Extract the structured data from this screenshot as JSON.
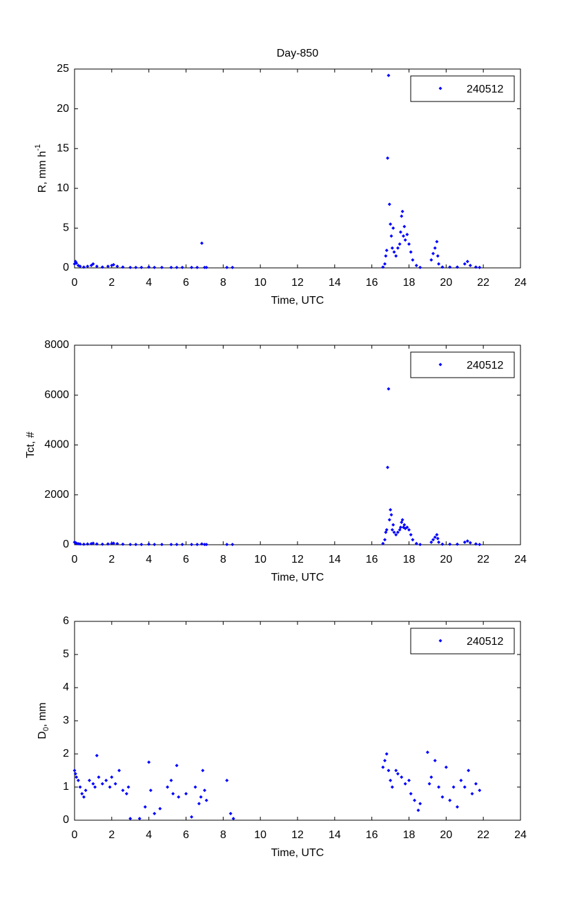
{
  "chart_data": [
    {
      "type": "scatter",
      "title": "Day-850",
      "xlabel": "Time, UTC",
      "ylabel": [
        {
          "text": "R, mm h"
        },
        {
          "text": "-1",
          "sup": true
        }
      ],
      "legend": "upper right",
      "x": [
        0.0,
        0.05,
        0.1,
        0.2,
        0.3,
        0.5,
        0.7,
        0.9,
        1.0,
        1.2,
        1.5,
        1.8,
        2.0,
        2.1,
        2.3,
        2.6,
        3.0,
        3.3,
        3.6,
        4.0,
        4.3,
        4.7,
        5.2,
        5.5,
        5.8,
        6.3,
        6.6,
        6.85,
        7.0,
        7.1,
        8.2,
        8.5,
        16.6,
        16.7,
        16.75,
        16.8,
        16.85,
        16.9,
        16.95,
        17.0,
        17.05,
        17.1,
        17.15,
        17.2,
        17.3,
        17.4,
        17.5,
        17.55,
        17.6,
        17.65,
        17.7,
        17.75,
        17.8,
        17.9,
        18.0,
        18.1,
        18.2,
        18.4,
        18.6,
        19.2,
        19.3,
        19.4,
        19.5,
        19.55,
        19.6,
        19.8,
        20.2,
        20.6,
        21.0,
        21.15,
        21.3,
        21.6,
        21.8
      ],
      "series": [
        {
          "name": "240512",
          "color": "#0000ff",
          "values": [
            0.5,
            0.8,
            0.6,
            0.3,
            0.2,
            0.1,
            0.2,
            0.3,
            0.5,
            0.2,
            0.1,
            0.2,
            0.3,
            0.4,
            0.2,
            0.1,
            0.05,
            0.05,
            0.05,
            0.1,
            0.05,
            0.05,
            0.05,
            0.05,
            0.05,
            0.05,
            0.05,
            3.1,
            0.05,
            0.05,
            0.05,
            0.05,
            0.1,
            0.5,
            1.5,
            2.2,
            13.8,
            24.2,
            8.0,
            5.5,
            4.0,
            2.5,
            5.0,
            2.0,
            1.5,
            2.5,
            3.0,
            4.5,
            6.5,
            7.1,
            4.0,
            5.2,
            3.5,
            4.2,
            3.0,
            2.0,
            1.0,
            0.3,
            0.05,
            1.0,
            1.8,
            2.5,
            3.3,
            1.5,
            0.5,
            0.1,
            0.1,
            0.1,
            0.5,
            0.8,
            0.3,
            0.1,
            0.05
          ]
        }
      ],
      "xlim": [
        0,
        24
      ],
      "xticks": [
        0,
        2,
        4,
        6,
        8,
        10,
        12,
        14,
        16,
        18,
        20,
        22,
        24
      ],
      "ylim": [
        0,
        25
      ],
      "yticks": [
        0,
        5,
        10,
        15,
        20,
        25
      ]
    },
    {
      "type": "scatter",
      "xlabel": "Time, UTC",
      "ylabel": [
        {
          "text": "Tct, #"
        }
      ],
      "legend": "upper right",
      "x": [
        0.0,
        0.05,
        0.1,
        0.2,
        0.3,
        0.5,
        0.7,
        0.9,
        1.0,
        1.2,
        1.5,
        1.8,
        2.0,
        2.1,
        2.3,
        2.6,
        3.0,
        3.3,
        3.6,
        4.0,
        4.3,
        4.7,
        5.2,
        5.5,
        5.8,
        6.3,
        6.6,
        6.85,
        7.0,
        7.1,
        8.2,
        8.5,
        16.6,
        16.7,
        16.75,
        16.8,
        16.85,
        16.9,
        16.95,
        17.0,
        17.05,
        17.1,
        17.15,
        17.2,
        17.3,
        17.4,
        17.5,
        17.55,
        17.6,
        17.65,
        17.7,
        17.75,
        17.8,
        17.9,
        18.0,
        18.1,
        18.2,
        18.4,
        18.6,
        19.2,
        19.3,
        19.4,
        19.5,
        19.55,
        19.6,
        19.8,
        20.2,
        20.6,
        21.0,
        21.15,
        21.3,
        21.6,
        21.8
      ],
      "series": [
        {
          "name": "240512",
          "color": "#0000ff",
          "values": [
            100,
            80,
            60,
            40,
            30,
            20,
            30,
            40,
            60,
            30,
            20,
            30,
            50,
            60,
            40,
            20,
            10,
            10,
            10,
            20,
            10,
            10,
            10,
            10,
            10,
            10,
            10,
            30,
            10,
            10,
            10,
            10,
            50,
            200,
            500,
            600,
            3100,
            6250,
            1000,
            1400,
            1200,
            600,
            800,
            500,
            400,
            500,
            600,
            700,
            900,
            1000,
            700,
            800,
            650,
            700,
            600,
            400,
            200,
            50,
            10,
            100,
            200,
            300,
            400,
            250,
            100,
            20,
            20,
            20,
            100,
            150,
            80,
            30,
            10
          ]
        }
      ],
      "xlim": [
        0,
        24
      ],
      "xticks": [
        0,
        2,
        4,
        6,
        8,
        10,
        12,
        14,
        16,
        18,
        20,
        22,
        24
      ],
      "ylim": [
        0,
        8000
      ],
      "yticks": [
        0,
        2000,
        4000,
        6000,
        8000
      ]
    },
    {
      "type": "scatter",
      "xlabel": "Time, UTC",
      "ylabel": [
        {
          "text": "D"
        },
        {
          "text": "0",
          "sub": true
        },
        {
          "text": ", mm"
        }
      ],
      "legend": "upper right",
      "x": [
        0.0,
        0.05,
        0.1,
        0.2,
        0.3,
        0.4,
        0.5,
        0.6,
        0.8,
        1.0,
        1.1,
        1.2,
        1.3,
        1.5,
        1.7,
        1.9,
        2.0,
        2.2,
        2.4,
        2.6,
        2.8,
        2.9,
        3.0,
        3.5,
        3.8,
        4.0,
        4.1,
        4.3,
        4.6,
        5.0,
        5.2,
        5.3,
        5.5,
        5.6,
        6.0,
        6.3,
        6.5,
        6.7,
        6.8,
        6.9,
        7.0,
        7.1,
        8.2,
        8.4,
        8.55,
        16.6,
        16.7,
        16.8,
        16.9,
        17.0,
        17.1,
        17.3,
        17.4,
        17.6,
        17.8,
        18.0,
        18.1,
        18.3,
        18.5,
        18.6,
        19.0,
        19.1,
        19.2,
        19.4,
        19.6,
        19.8,
        20.0,
        20.2,
        20.4,
        20.6,
        20.8,
        21.0,
        21.2,
        21.4,
        21.6,
        21.8
      ],
      "series": [
        {
          "name": "240512",
          "color": "#0000ff",
          "values": [
            1.5,
            1.4,
            1.3,
            1.2,
            1.0,
            0.8,
            0.7,
            0.9,
            1.2,
            1.1,
            1.0,
            1.95,
            1.3,
            1.1,
            1.2,
            1.0,
            1.3,
            1.1,
            1.5,
            0.9,
            0.8,
            1.0,
            0.05,
            0.05,
            0.4,
            1.75,
            0.9,
            0.2,
            0.35,
            1.0,
            1.2,
            0.8,
            1.65,
            0.7,
            0.8,
            0.1,
            1.0,
            0.5,
            0.7,
            1.5,
            0.9,
            0.6,
            1.2,
            0.2,
            0.05,
            1.6,
            1.8,
            2.0,
            1.5,
            1.2,
            1.0,
            1.5,
            1.4,
            1.3,
            1.1,
            1.2,
            0.8,
            0.6,
            0.3,
            0.5,
            2.05,
            1.1,
            1.3,
            1.8,
            1.0,
            0.7,
            1.6,
            0.6,
            1.0,
            0.4,
            1.2,
            1.0,
            1.5,
            0.8,
            1.1,
            0.9
          ]
        }
      ],
      "xlim": [
        0,
        24
      ],
      "xticks": [
        0,
        2,
        4,
        6,
        8,
        10,
        12,
        14,
        16,
        18,
        20,
        22,
        24
      ],
      "ylim": [
        0,
        6
      ],
      "yticks": [
        0,
        1,
        2,
        3,
        4,
        5,
        6
      ]
    }
  ]
}
